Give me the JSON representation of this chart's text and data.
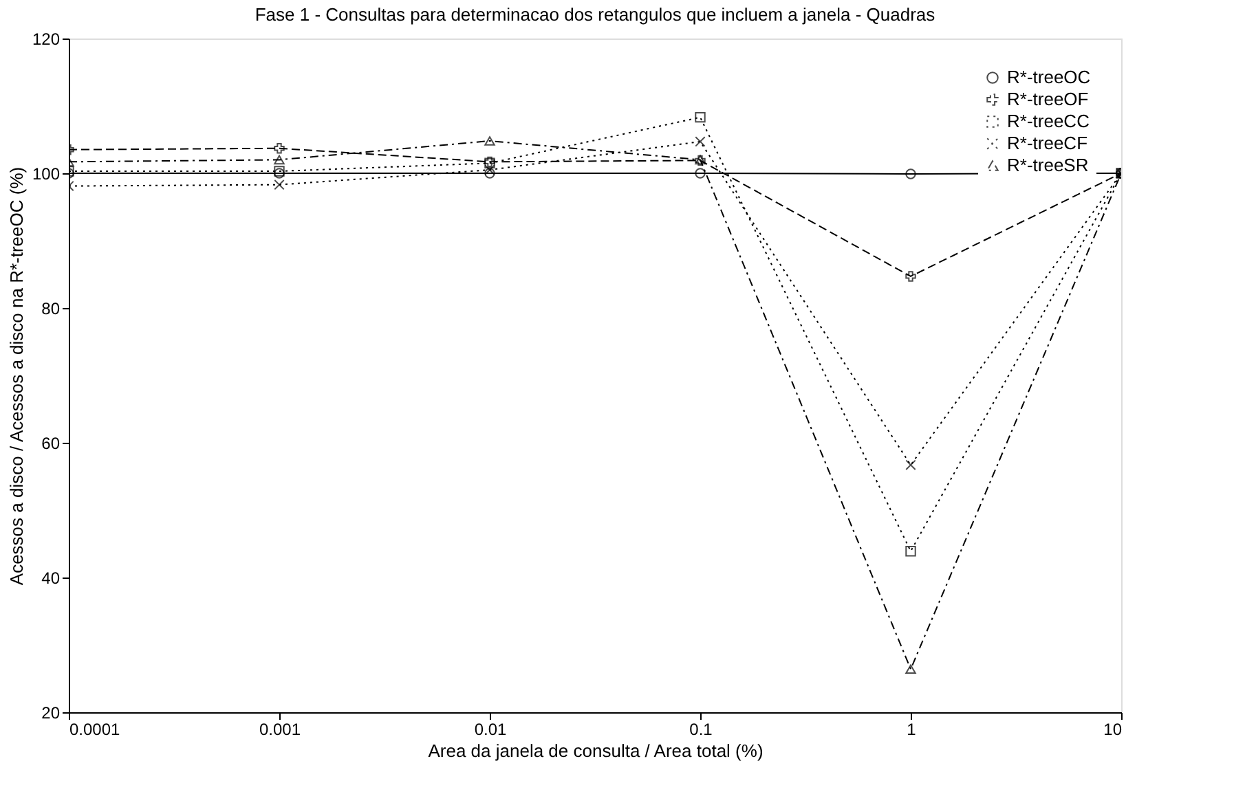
{
  "chart_data": {
    "type": "line",
    "title": "Fase 1 - Consultas para determinacao dos retangulos que incluem a janela - Quadras",
    "xlabel": "Area da janela de consulta / Area total (%)",
    "ylabel": "Acessos a disco / Acessos a disco na R*-treeOC (%)",
    "x": [
      0.0001,
      0.001,
      0.01,
      0.1,
      1,
      10
    ],
    "log": "x",
    "xlim": [
      0.0001,
      10
    ],
    "xticks": [
      0.0001,
      0.001,
      0.01,
      0.1,
      1,
      10
    ],
    "ylim": [
      20,
      120
    ],
    "yticks": [
      20,
      40,
      60,
      80,
      100,
      120
    ],
    "grid": false,
    "legend": "top right",
    "series": [
      {
        "name": "R*-treeOC",
        "color": "#000000",
        "marker": "circle",
        "line_style": "solid",
        "values": [
          100,
          100,
          100,
          100,
          99.9,
          100
        ]
      },
      {
        "name": "R*-treeOF",
        "color": "#000000",
        "marker": "plus",
        "line_style": "dashed",
        "values": [
          103.5,
          103.7,
          101.7,
          101.9,
          84.7,
          100
        ]
      },
      {
        "name": "R*-treeCC",
        "color": "#000000",
        "marker": "square",
        "line_style": "dotted",
        "values": [
          100.3,
          100.3,
          101.5,
          108.3,
          43.9,
          100
        ]
      },
      {
        "name": "R*-treeCF",
        "color": "#000000",
        "marker": "cross",
        "line_style": "dotted",
        "values": [
          98.1,
          98.3,
          100.5,
          104.7,
          56.7,
          100
        ]
      },
      {
        "name": "R*-treeSR",
        "color": "#000000",
        "marker": "triangle",
        "line_style": "dashdot",
        "values": [
          101.7,
          102,
          104.8,
          102,
          26.4,
          100
        ]
      }
    ]
  }
}
